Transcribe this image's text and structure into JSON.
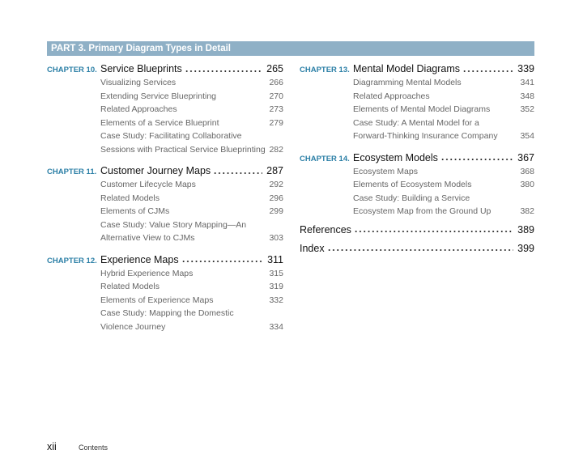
{
  "part": "PART 3.  Primary Diagram Types in Detail",
  "columns": [
    [
      {
        "label": "CHAPTER 10.",
        "title": "Service Blueprints",
        "page": 265,
        "sections": [
          {
            "lines": [
              "Visualizing Services"
            ],
            "page": 266
          },
          {
            "lines": [
              "Extending Service Blueprinting"
            ],
            "page": 270
          },
          {
            "lines": [
              "Related Approaches"
            ],
            "page": 273
          },
          {
            "lines": [
              "Elements of a Service Blueprint"
            ],
            "page": 279
          },
          {
            "lines": [
              "Case Study: Facilitating Collaborative",
              "Sessions with Practical Service Blueprinting"
            ],
            "page": 282
          }
        ]
      },
      {
        "label": "CHAPTER 11.",
        "title": "Customer Journey Maps",
        "page": 287,
        "sections": [
          {
            "lines": [
              "Customer Lifecycle Maps"
            ],
            "page": 292
          },
          {
            "lines": [
              "Related Models"
            ],
            "page": 296
          },
          {
            "lines": [
              "Elements of CJMs"
            ],
            "page": 299
          },
          {
            "lines": [
              "Case Study: Value Story Mapping—An",
              "Alternative View to CJMs"
            ],
            "page": 303
          }
        ]
      },
      {
        "label": "CHAPTER 12.",
        "title": "Experience Maps",
        "page": 311,
        "sections": [
          {
            "lines": [
              "Hybrid Experience Maps"
            ],
            "page": 315
          },
          {
            "lines": [
              "Related Models"
            ],
            "page": 319
          },
          {
            "lines": [
              "Elements of Experience Maps"
            ],
            "page": 332
          },
          {
            "lines": [
              "Case Study: Mapping the Domestic",
              "Violence Journey"
            ],
            "page": 334
          }
        ]
      }
    ],
    [
      {
        "label": "CHAPTER 13.",
        "title": "Mental Model Diagrams",
        "page": 339,
        "sections": [
          {
            "lines": [
              "Diagramming Mental Models"
            ],
            "page": 341
          },
          {
            "lines": [
              "Related Approaches"
            ],
            "page": 348
          },
          {
            "lines": [
              "Elements of Mental Model Diagrams"
            ],
            "page": 352
          },
          {
            "lines": [
              "Case Study: A Mental Model for a",
              "Forward-Thinking Insurance Company"
            ],
            "page": 354
          }
        ]
      },
      {
        "label": "CHAPTER 14.",
        "title": "Ecosystem Models",
        "page": 367,
        "sections": [
          {
            "lines": [
              "Ecosystem Maps"
            ],
            "page": 368
          },
          {
            "lines": [
              "Elements of Ecosystem Models"
            ],
            "page": 380
          },
          {
            "lines": [
              "Case Study: Building a Service",
              "Ecosystem Map from the Ground Up"
            ],
            "page": 382
          }
        ]
      },
      {
        "title": "References",
        "page": 389
      },
      {
        "title": "Index",
        "page": 399
      }
    ]
  ],
  "footer": {
    "page": "xii",
    "section": "Contents"
  }
}
